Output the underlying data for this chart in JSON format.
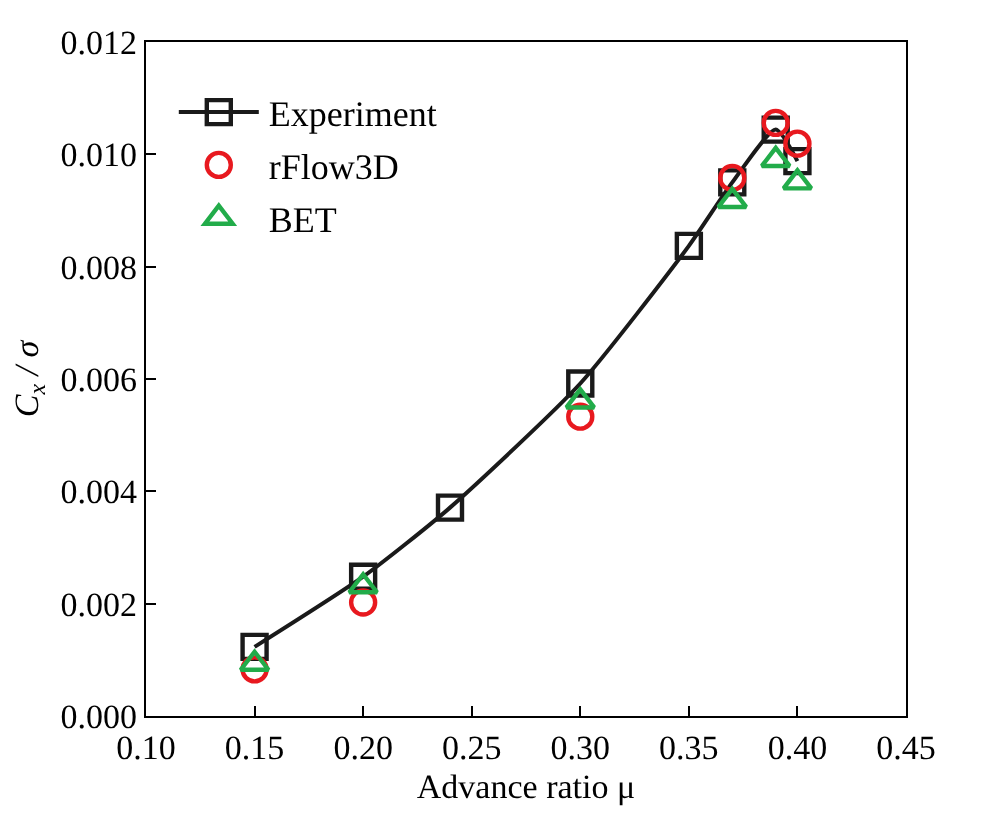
{
  "chart_data": {
    "type": "scatter",
    "xlabel": "Advance ratio μ",
    "ylabel": "C$_{x}$ / σ",
    "xlim": [
      0.1,
      0.45
    ],
    "xticks": [
      {
        "value": 0.1,
        "label": "0.10"
      },
      {
        "value": 0.15,
        "label": "0.15"
      },
      {
        "value": 0.2,
        "label": "0.20"
      },
      {
        "value": 0.25,
        "label": "0.25"
      },
      {
        "value": 0.3,
        "label": "0.30"
      },
      {
        "value": 0.35,
        "label": "0.35"
      },
      {
        "value": 0.4,
        "label": "0.40"
      },
      {
        "value": 0.45,
        "label": "0.45"
      }
    ],
    "ylim": [
      0,
      0.012
    ],
    "yticks": [
      {
        "value": 0,
        "label": "0.000"
      },
      {
        "value": 0.002,
        "label": "0.002"
      },
      {
        "value": 0.004,
        "label": "0.004"
      },
      {
        "value": 0.006,
        "label": "0.006"
      },
      {
        "value": 0.008,
        "label": "0.008"
      },
      {
        "value": 0.01,
        "label": "0.010"
      },
      {
        "value": 0.012,
        "label": "0.012"
      }
    ],
    "legend": "top left",
    "series": [
      {
        "name": "Experiment",
        "type": "line",
        "marker": "square",
        "color": "#1a1a1a",
        "x": [
          0.15,
          0.2,
          0.24,
          0.3,
          0.35,
          0.37,
          0.39,
          0.4
        ],
        "values": [
          0.00123,
          0.00248,
          0.00371,
          0.00592,
          0.00837,
          0.0095,
          0.01044,
          0.00988
        ]
      },
      {
        "name": "rFlow3D",
        "marker": "circle",
        "color": "#e8191f",
        "x": [
          0.15,
          0.2,
          0.3,
          0.37,
          0.39,
          0.4
        ],
        "values": [
          0.00083,
          0.00202,
          0.00533,
          0.00958,
          0.01056,
          0.01019
        ]
      },
      {
        "name": "BET",
        "marker": "triangle",
        "color": "#22ac4a",
        "x": [
          0.15,
          0.2,
          0.3,
          0.37,
          0.39,
          0.4
        ],
        "values": [
          0.00093,
          0.00231,
          0.0056,
          0.00917,
          0.0099,
          0.0095
        ]
      }
    ]
  }
}
